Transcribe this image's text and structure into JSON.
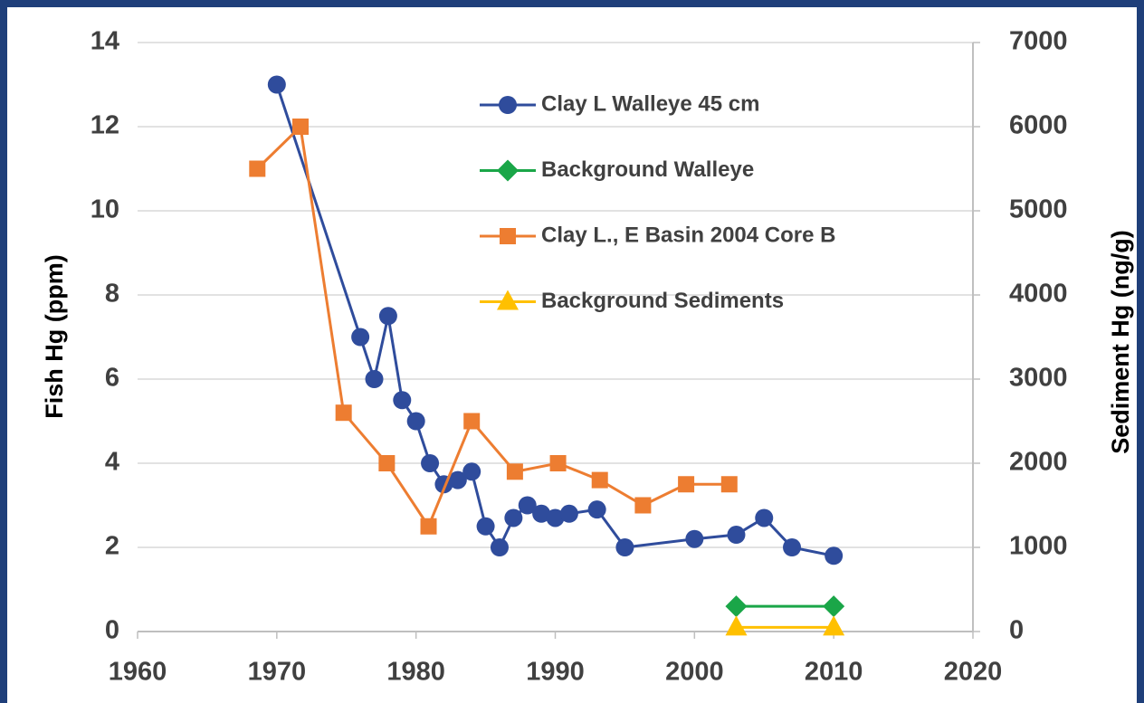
{
  "chart_data": {
    "type": "line",
    "y_label": "Fish Hg (ppm)",
    "y2_label": "Sediment Hg (ng/g)",
    "xlim": [
      1960,
      2020
    ],
    "xticks": [
      1960,
      1970,
      1980,
      1990,
      2000,
      2010,
      2020
    ],
    "ylim": [
      0,
      14
    ],
    "yticks": [
      0,
      2,
      4,
      6,
      8,
      10,
      12,
      14
    ],
    "y2lim": [
      0,
      7000
    ],
    "y2ticks": [
      0,
      1000,
      2000,
      3000,
      4000,
      5000,
      6000,
      7000
    ],
    "grid": true,
    "legend": "top",
    "series": [
      {
        "name": "Clay L  Walleye 45 cm",
        "color": "#2f4c9c",
        "marker": "circle",
        "x": [
          1970,
          1976,
          1977,
          1978,
          1979,
          1980,
          1981,
          1982,
          1983,
          1984,
          1985,
          1986,
          1987,
          1988,
          1989,
          1990,
          1991,
          1993,
          1995,
          2000,
          2003,
          2005,
          2007,
          2010
        ],
        "values": [
          13,
          7,
          6,
          7.5,
          5.5,
          5,
          4,
          3.5,
          3.6,
          3.8,
          2.5,
          2,
          2.7,
          3,
          2.8,
          2.7,
          2.8,
          2.9,
          2,
          2.2,
          2.3,
          2.7,
          2,
          1.8
        ]
      },
      {
        "name": "Background Walleye",
        "color": "#1aa648",
        "marker": "diamond",
        "x": [
          2003,
          2010
        ],
        "values": [
          0.6,
          0.6
        ]
      },
      {
        "name": "Clay L., E Basin 2004 Core B",
        "color": "#ed7d31",
        "marker": "square",
        "axis": "y2",
        "x": [
          1968.6,
          1971.7,
          1974.8,
          1977.9,
          1980.9,
          1984,
          1987.1,
          1990.2,
          1993.2,
          1996.3,
          1999.4,
          2002.5
        ],
        "values": [
          5500,
          6000,
          2600,
          2000,
          1250,
          2500,
          1900,
          2000,
          1800,
          1500,
          1750,
          1750
        ]
      },
      {
        "name": "Background Sediments",
        "color": "#ffc000",
        "marker": "triangle",
        "axis": "y2",
        "x": [
          2003,
          2010
        ],
        "values": [
          50,
          50
        ]
      }
    ]
  }
}
